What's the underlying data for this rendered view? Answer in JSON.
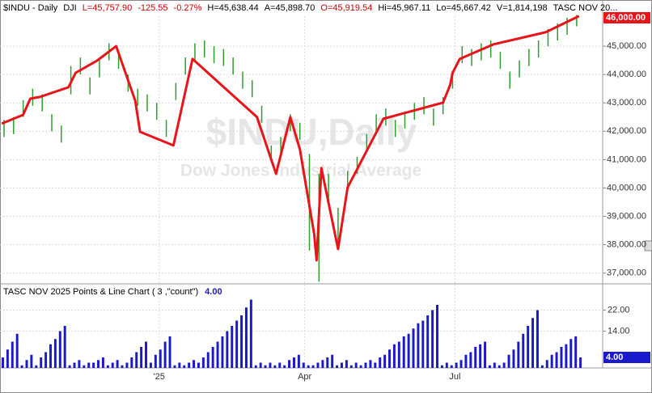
{
  "chart_data": [
    {
      "type": "ohlc",
      "header": [
        {
          "text": "$INDU - Daily",
          "color": "#000000"
        },
        {
          "text": "DJI",
          "color": "#000000"
        },
        {
          "text": "L=45,757.90",
          "color": "#d00000"
        },
        {
          "text": "-125.55",
          "color": "#d00000"
        },
        {
          "text": "-0.27%",
          "color": "#d00000"
        },
        {
          "text": "H=45,638.44",
          "color": "#000000"
        },
        {
          "text": "A=45,898.70",
          "color": "#000000"
        },
        {
          "text": "O=45,919.54",
          "color": "#d00000"
        },
        {
          "text": "Hi=45,967.11",
          "color": "#000000"
        },
        {
          "text": "Lo=45,667.42",
          "color": "#000000"
        },
        {
          "text": "V=1,814,198",
          "color": "#000000"
        },
        {
          "text": "TASC NOV 20...",
          "color": "#000000"
        }
      ],
      "watermark": [
        "$INDU,Daily",
        "Dow Jones Industrial Average"
      ],
      "color": "#2e9e2e",
      "x": [
        1,
        5,
        9,
        13,
        17,
        21,
        25,
        29,
        33,
        37,
        41,
        45,
        49,
        53,
        57,
        61,
        65,
        69,
        73,
        77,
        81,
        85,
        89,
        93,
        97,
        101,
        105,
        109,
        113,
        117,
        121,
        125,
        129,
        133,
        137,
        141,
        145,
        149,
        153,
        157,
        161,
        165,
        169,
        173,
        177,
        181,
        185,
        189,
        193,
        197,
        201,
        205,
        209,
        213,
        217,
        221,
        225,
        229,
        233,
        237,
        241
      ],
      "high": [
        42400,
        42500,
        43100,
        43500,
        43300,
        42600,
        42200,
        44300,
        44600,
        43900,
        44500,
        45100,
        44800,
        44000,
        43500,
        43300,
        43000,
        42400,
        43700,
        44600,
        45100,
        45200,
        45000,
        44900,
        44600,
        44100,
        43800,
        42900,
        41500,
        41800,
        42600,
        42300,
        41200,
        40500,
        40500,
        39300,
        40600,
        41100,
        41900,
        42600,
        42800,
        42400,
        42700,
        43000,
        43200,
        42800,
        43200,
        44100,
        45000,
        44900,
        45100,
        45200,
        44800,
        44100,
        44500,
        44900,
        45200,
        45600,
        45800,
        46000,
        46100
      ],
      "low": [
        41800,
        41900,
        42500,
        42900,
        42700,
        42000,
        41600,
        43300,
        44000,
        43300,
        43900,
        44500,
        44200,
        43400,
        42900,
        42700,
        42400,
        41800,
        43100,
        44000,
        44500,
        44600,
        44400,
        44300,
        44000,
        43500,
        43200,
        42300,
        40900,
        41200,
        42000,
        41700,
        37800,
        36700,
        39400,
        38100,
        40000,
        40500,
        41300,
        42000,
        42200,
        41800,
        42100,
        42400,
        42600,
        42200,
        42600,
        43500,
        44400,
        44300,
        44500,
        44600,
        44200,
        43500,
        43900,
        44300,
        44600,
        45000,
        45200,
        45400,
        45700
      ],
      "line": {
        "color": "#e8141a",
        "x": [
          0,
          9,
          12,
          16,
          28,
          31,
          40,
          48,
          56,
          58,
          72,
          80,
          107,
          115,
          121,
          125,
          131,
          132,
          134,
          141,
          145,
          160,
          185,
          188,
          189,
          192,
          206,
          228,
          242
        ],
        "values": [
          42270,
          42580,
          43150,
          43210,
          43550,
          44060,
          44490,
          45000,
          43070,
          41980,
          41500,
          44550,
          42500,
          40500,
          42500,
          41360,
          38370,
          37450,
          40700,
          37850,
          40020,
          42440,
          43010,
          43640,
          44060,
          44550,
          45060,
          45490,
          46060
        ]
      },
      "xlim": [
        -0.7,
        251.9
      ],
      "xticks": [
        {
          "value": 66,
          "label": "'25"
        },
        {
          "value": 127,
          "label": "Apr"
        },
        {
          "value": 190,
          "label": "Jul"
        }
      ],
      "ylim": [
        36650,
        46570
      ],
      "yticks": [
        {
          "value": 37000,
          "label": "37,000.00"
        },
        {
          "value": 38000,
          "label": "38,000.00"
        },
        {
          "value": 39000,
          "label": "39,000.00"
        },
        {
          "value": 40000,
          "label": "40,000.00"
        },
        {
          "value": 41000,
          "label": "41,000.00"
        },
        {
          "value": 42000,
          "label": "42,000.00"
        },
        {
          "value": 43000,
          "label": "43,000.00"
        },
        {
          "value": 44000,
          "label": "44,000.00"
        },
        {
          "value": 45000,
          "label": "45,000.00"
        }
      ],
      "last_price": {
        "value": 46000,
        "label": "46,000.00"
      },
      "grid": true
    },
    {
      "type": "bar",
      "title": "TASC NOV 2025 Points & Line Chart ( 3 ,\"count\")",
      "color": "#1a1acc",
      "values": [
        4,
        7,
        10,
        13,
        1,
        3,
        5,
        1,
        4,
        6,
        9,
        11,
        14,
        16,
        1,
        2,
        3,
        1,
        2,
        2,
        3,
        4,
        1,
        2,
        3,
        1,
        2,
        4,
        6,
        8,
        10,
        2,
        5,
        7,
        10,
        12,
        1,
        2,
        1,
        2,
        3,
        2,
        4,
        6,
        8,
        10,
        12,
        14,
        16,
        18,
        20,
        23,
        26,
        1,
        2,
        1,
        2,
        1,
        2,
        1,
        3,
        4,
        5,
        2,
        1,
        1,
        2,
        3,
        4,
        5,
        1,
        2,
        3,
        1,
        2,
        1,
        2,
        3,
        2,
        4,
        5,
        7,
        9,
        10,
        12,
        13,
        15,
        17,
        18,
        20,
        22,
        24,
        1,
        2,
        1,
        2,
        3,
        5,
        6,
        8,
        9,
        10,
        1,
        2,
        1,
        2,
        5,
        7,
        10,
        13,
        16,
        19,
        22,
        1,
        3,
        5,
        6,
        8,
        9,
        11,
        12,
        4
      ],
      "ylim": [
        0,
        28
      ],
      "yticks": [
        {
          "value": 14,
          "label": "14.00"
        },
        {
          "value": 22,
          "label": "22.00"
        }
      ],
      "last_value": {
        "value": 4,
        "label": "4.00"
      },
      "grid": true
    }
  ]
}
